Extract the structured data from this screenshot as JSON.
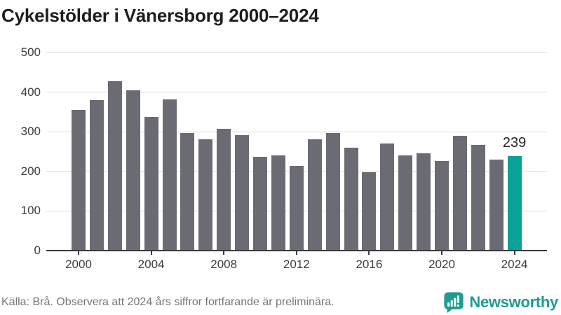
{
  "title": "Cykelstölder i Vänersborg 2000–2024",
  "chart_data": {
    "type": "bar",
    "title": "Cykelstölder i Vänersborg 2000–2024",
    "xlabel": "",
    "ylabel": "",
    "x": [
      2000,
      2001,
      2002,
      2003,
      2004,
      2005,
      2006,
      2007,
      2008,
      2009,
      2010,
      2011,
      2012,
      2013,
      2014,
      2015,
      2016,
      2017,
      2018,
      2019,
      2020,
      2021,
      2022,
      2023,
      2024
    ],
    "values": [
      356,
      380,
      428,
      405,
      337,
      381,
      297,
      281,
      308,
      292,
      236,
      240,
      214,
      281,
      296,
      260,
      198,
      270,
      241,
      245,
      227,
      290,
      266,
      230,
      239
    ],
    "highlight_year": 2024,
    "highlight_label": "239",
    "ylim": [
      0,
      500
    ],
    "y_ticks": [
      0,
      100,
      200,
      300,
      400,
      500
    ],
    "x_ticks": [
      2000,
      2004,
      2008,
      2012,
      2016,
      2020,
      2024
    ],
    "grid": "horizontal",
    "legend": "none",
    "colors": {
      "bar": "#6b6b74",
      "highlight": "#0aa296",
      "grid": "#dcdcdf",
      "axis": "#3a3a42",
      "label": "#3c3c44"
    }
  },
  "footer": {
    "source": "Källa: Brå. Observera att 2024 års siffror fortfarande är preliminära.",
    "logo_text": "Newsworthy",
    "logo_color": "#1e9c90"
  }
}
